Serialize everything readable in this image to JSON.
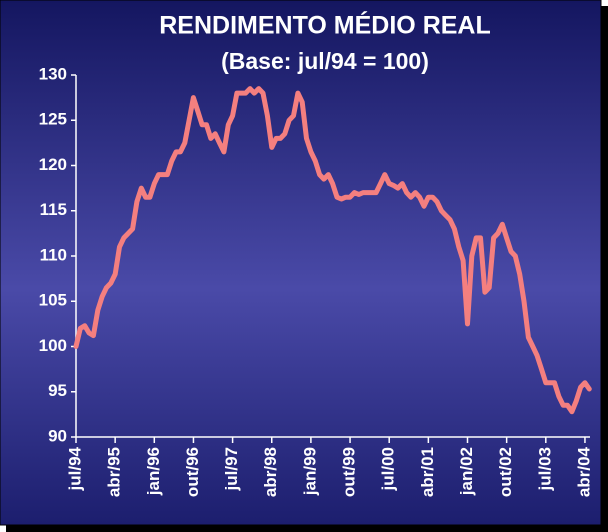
{
  "chart_data": {
    "type": "line",
    "title": "RENDIMENTO MÉDIO REAL",
    "subtitle": "(Base: jul/94 = 100)",
    "categories": [
      "jul/94",
      null,
      null,
      null,
      null,
      null,
      null,
      null,
      null,
      "abr/95",
      null,
      null,
      null,
      null,
      null,
      null,
      null,
      null,
      "jan/96",
      null,
      null,
      null,
      null,
      null,
      null,
      null,
      null,
      "out/96",
      null,
      null,
      null,
      null,
      null,
      null,
      null,
      null,
      "jul/97",
      null,
      null,
      null,
      null,
      null,
      null,
      null,
      null,
      "abr/98",
      null,
      null,
      null,
      null,
      null,
      null,
      null,
      null,
      "jan/99",
      null,
      null,
      null,
      null,
      null,
      null,
      null,
      null,
      "out/99",
      null,
      null,
      null,
      null,
      null,
      null,
      null,
      null,
      "jul/00",
      null,
      null,
      null,
      null,
      null,
      null,
      null,
      null,
      "abr/01",
      null,
      null,
      null,
      null,
      null,
      null,
      null,
      null,
      "jan/02",
      null,
      null,
      null,
      null,
      null,
      null,
      null,
      null,
      "out/02",
      null,
      null,
      null,
      null,
      null,
      null,
      null,
      null,
      "jul/03",
      null,
      null,
      null,
      null,
      null,
      null,
      null,
      null,
      "abr/04",
      null
    ],
    "series": [
      {
        "color": "#f47f7f",
        "values": [
          100,
          102,
          102.3,
          101.5,
          101.2,
          104,
          105.5,
          106.5,
          107,
          108,
          111,
          112,
          112.5,
          113,
          116,
          117.5,
          116.5,
          116.5,
          118,
          119,
          119,
          119,
          120.5,
          121.5,
          121.5,
          122.5,
          125,
          127.5,
          126,
          124.5,
          124.5,
          123,
          123.5,
          122.5,
          121.5,
          124.5,
          125.5,
          128,
          128,
          128,
          128.5,
          128,
          128.5,
          128,
          125.5,
          122,
          123,
          123,
          123.5,
          125,
          125.5,
          128,
          127,
          123,
          121.5,
          120.5,
          119,
          118.5,
          119,
          118,
          116.5,
          116.3,
          116.5,
          116.5,
          117,
          116.8,
          117,
          117,
          117,
          117,
          118,
          119,
          118,
          117.8,
          117.5,
          118,
          117,
          116.5,
          117,
          116.5,
          115.5,
          116.5,
          116.5,
          116,
          115,
          114.5,
          114,
          113,
          111,
          109.5,
          102.5,
          110,
          112,
          112,
          106,
          106.5,
          112,
          112.5,
          113.5,
          112,
          110.5,
          110,
          108,
          105,
          101,
          100,
          99,
          97.5,
          96,
          96,
          96,
          94.5,
          93.5,
          93.5,
          92.8,
          94,
          95.5,
          96,
          95.3
        ]
      }
    ],
    "ylim": [
      90,
      130
    ],
    "yticks": [
      90,
      95,
      100,
      105,
      110,
      115,
      120,
      125,
      130
    ]
  }
}
